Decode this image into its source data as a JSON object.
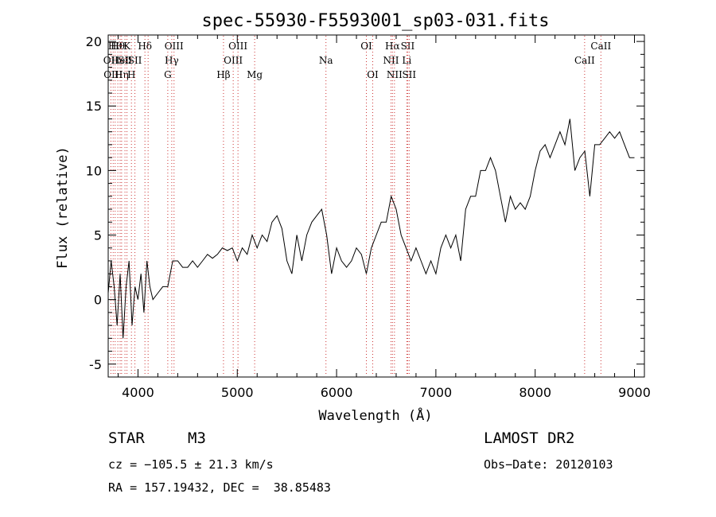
{
  "chart_data": {
    "type": "line",
    "title": "spec-55930-F5593001_sp03-031.fits",
    "xlabel": "Wavelength (Å)",
    "ylabel": "Flux (relative)",
    "xlim": [
      3700,
      9100
    ],
    "ylim": [
      -6,
      20.5
    ],
    "xticks": [
      4000,
      5000,
      6000,
      7000,
      8000,
      9000
    ],
    "yticks": [
      -5,
      0,
      5,
      10,
      15,
      20
    ],
    "series_color": "#000000",
    "line_marker_color": "#cc3333",
    "series": [
      {
        "x": [
          3700,
          3730,
          3760,
          3790,
          3820,
          3850,
          3880,
          3910,
          3940,
          3970,
          4000,
          4030,
          4060,
          4090,
          4120,
          4150,
          4200,
          4250,
          4300,
          4350,
          4400,
          4450,
          4500,
          4550,
          4600,
          4650,
          4700,
          4750,
          4800,
          4850,
          4900,
          4950,
          5000,
          5050,
          5100,
          5150,
          5200,
          5250,
          5300,
          5350,
          5400,
          5450,
          5500,
          5550,
          5600,
          5650,
          5700,
          5750,
          5800,
          5850,
          5900,
          5950,
          6000,
          6050,
          6100,
          6150,
          6200,
          6250,
          6300,
          6350,
          6400,
          6450,
          6500,
          6550,
          6600,
          6650,
          6700,
          6750,
          6800,
          6850,
          6900,
          6950,
          7000,
          7050,
          7100,
          7150,
          7200,
          7250,
          7300,
          7350,
          7400,
          7450,
          7500,
          7550,
          7600,
          7650,
          7700,
          7750,
          7800,
          7850,
          7900,
          7950,
          8000,
          8050,
          8100,
          8150,
          8200,
          8250,
          8300,
          8350,
          8400,
          8450,
          8500,
          8550,
          8600,
          8650,
          8700,
          8750,
          8800,
          8850,
          8900,
          8950,
          9000
        ],
        "y": [
          0.5,
          3,
          1,
          -2,
          2,
          -3,
          1,
          3,
          -2,
          1,
          0,
          2,
          -1,
          3,
          1,
          0,
          0.5,
          1,
          1,
          3,
          3,
          2.5,
          2.5,
          3,
          2.5,
          3,
          3.5,
          3.2,
          3.5,
          4,
          3.8,
          4,
          3,
          4,
          3.5,
          5,
          4,
          5,
          4.5,
          6,
          6.5,
          5.5,
          3,
          2,
          5,
          3,
          5,
          6,
          6.5,
          7,
          5,
          2,
          4,
          3,
          2.5,
          3,
          4,
          3.5,
          2,
          4,
          5,
          6,
          6,
          8,
          7,
          5,
          4,
          3,
          4,
          3,
          2,
          3,
          2,
          4,
          5,
          4,
          5,
          3,
          7,
          8,
          8,
          10,
          10,
          11,
          10,
          8,
          6,
          8,
          7,
          7.5,
          7,
          8,
          10,
          11.5,
          12,
          11,
          12,
          13,
          12,
          14,
          10,
          11,
          11.5,
          8,
          12,
          12,
          12.5,
          13,
          12.5,
          13,
          12,
          11,
          11
        ]
      }
    ],
    "markers": [
      {
        "x": 3727,
        "label": "OII",
        "row": 1
      },
      {
        "x": 3750,
        "label": "OIII",
        "row": 2
      },
      {
        "x": 3770,
        "label": "Hθ",
        "row": 0
      },
      {
        "x": 3797,
        "label": "Hθ",
        "row": 0
      },
      {
        "x": 3820,
        "label": "HeI",
        "row": 1
      },
      {
        "x": 3835,
        "label": "Hη",
        "row": 2
      },
      {
        "x": 3869,
        "label": "SII",
        "row": 1
      },
      {
        "x": 3889,
        "label": "K",
        "row": 0
      },
      {
        "x": 3934,
        "label": "H",
        "row": 2
      },
      {
        "x": 3969,
        "label": "SII",
        "row": 1
      },
      {
        "x": 4070,
        "label": "Hδ",
        "row": 0
      },
      {
        "x": 4102,
        "label": "",
        "row": 0
      },
      {
        "x": 4300,
        "label": "G",
        "row": 2
      },
      {
        "x": 4340,
        "label": "Hγ",
        "row": 1
      },
      {
        "x": 4363,
        "label": "OIII",
        "row": 0
      },
      {
        "x": 4861,
        "label": "Hβ",
        "row": 2
      },
      {
        "x": 4959,
        "label": "OIII",
        "row": 1
      },
      {
        "x": 5007,
        "label": "OIII",
        "row": 0
      },
      {
        "x": 5175,
        "label": "Mg",
        "row": 2
      },
      {
        "x": 5893,
        "label": "Na",
        "row": 1
      },
      {
        "x": 6300,
        "label": "OI",
        "row": 0
      },
      {
        "x": 6364,
        "label": "OI",
        "row": 2
      },
      {
        "x": 6548,
        "label": "NII",
        "row": 1
      },
      {
        "x": 6563,
        "label": "Hα",
        "row": 0
      },
      {
        "x": 6583,
        "label": "NII",
        "row": 2
      },
      {
        "x": 6707,
        "label": "Li",
        "row": 1
      },
      {
        "x": 6716,
        "label": "SII",
        "row": 0
      },
      {
        "x": 6731,
        "label": "SII",
        "row": 2
      },
      {
        "x": 8498,
        "label": "CaII",
        "row": 1
      },
      {
        "x": 8662,
        "label": "CaII",
        "row": 0
      }
    ]
  },
  "info": {
    "object_type": "STAR",
    "subclass": "M3",
    "survey": "LAMOST DR2",
    "cz": "cz = −105.5 ± 21.3 km/s",
    "obs_date": "Obs−Date: 20120103",
    "coords": "RA = 157.19432, DEC =  38.85483"
  }
}
